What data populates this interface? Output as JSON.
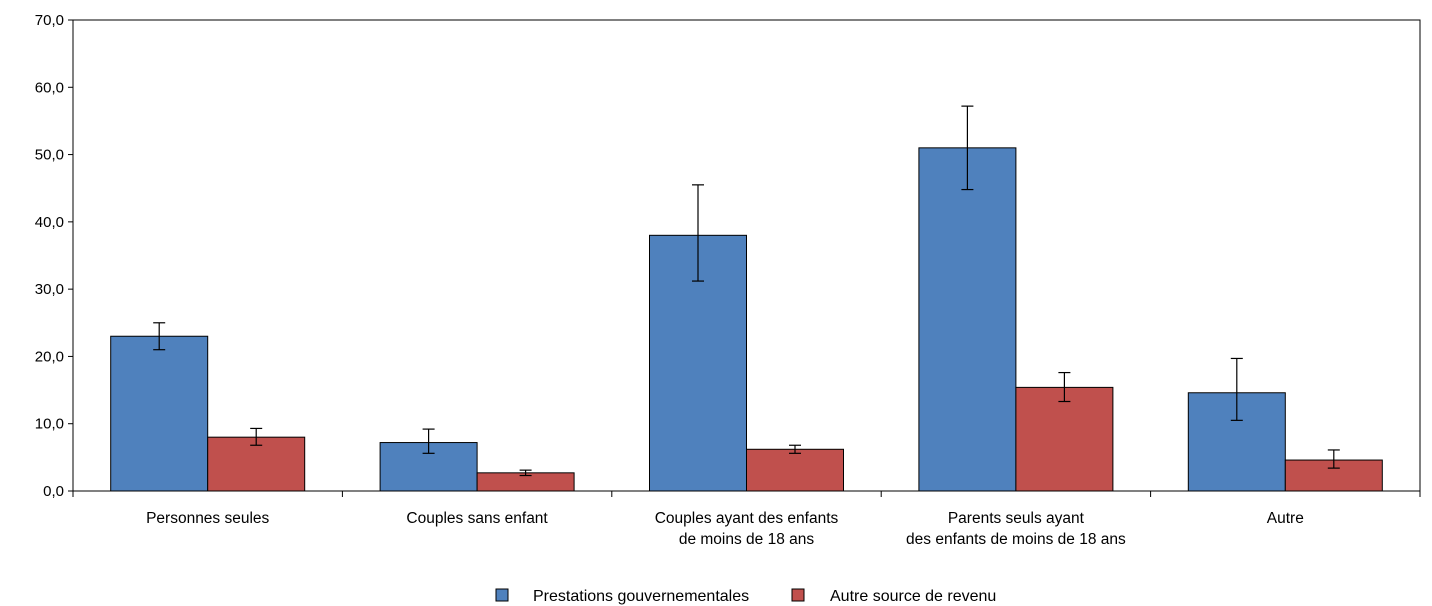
{
  "chart_data": {
    "type": "bar",
    "title": "",
    "xlabel": "",
    "ylabel": "",
    "ylim": [
      0,
      70
    ],
    "y_ticks": [
      "0,0",
      "10,0",
      "20,0",
      "30,0",
      "40,0",
      "50,0",
      "60,0",
      "70,0"
    ],
    "grid": false,
    "legend_position": "bottom",
    "categories": [
      [
        "Personnes seules"
      ],
      [
        "Couples sans enfant"
      ],
      [
        "Couples ayant des enfants",
        "de moins de 18 ans"
      ],
      [
        "Parents seuls ayant",
        "des enfants de moins de 18 ans"
      ],
      [
        "Autre"
      ]
    ],
    "series": [
      {
        "name": "Prestations gouvernementales",
        "color": "#4f81bd",
        "values": [
          23.0,
          7.2,
          38.0,
          51.0,
          14.6
        ],
        "error_low": [
          21.0,
          5.6,
          31.2,
          44.8,
          10.5
        ],
        "error_high": [
          25.0,
          9.2,
          45.5,
          57.2,
          19.7
        ]
      },
      {
        "name": "Autre source de revenu",
        "color": "#c0504d",
        "values": [
          8.0,
          2.7,
          6.2,
          15.4,
          4.6
        ],
        "error_low": [
          6.8,
          2.3,
          5.6,
          13.3,
          3.4
        ],
        "error_high": [
          9.3,
          3.1,
          6.8,
          17.6,
          6.1
        ]
      }
    ]
  }
}
